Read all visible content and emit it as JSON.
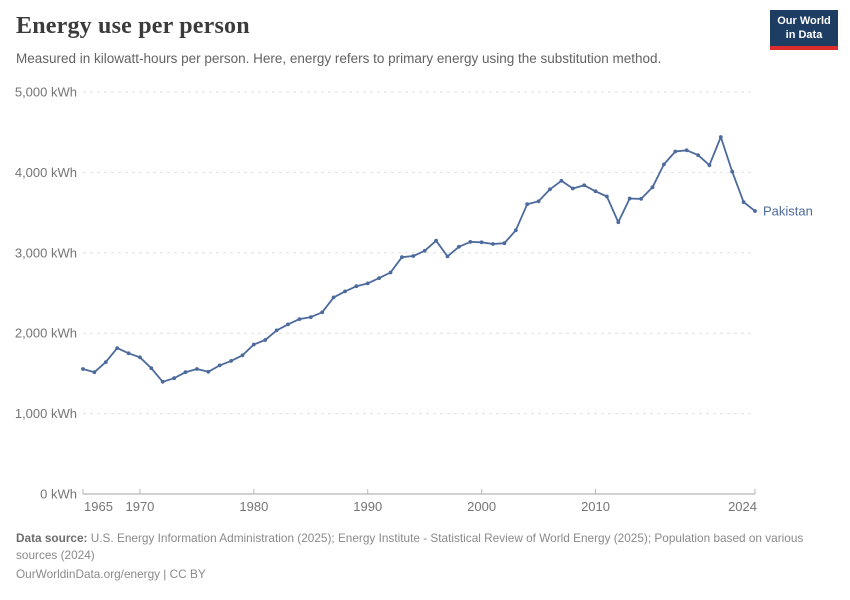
{
  "header": {
    "title": "Energy use per person",
    "subtitle": "Measured in kilowatt-hours per person. Here, energy refers to primary energy using the substitution method.",
    "logo": {
      "line1": "Our World",
      "line2": "in Data"
    }
  },
  "chart_data": {
    "type": "line",
    "title": "Energy use per person",
    "unit": "kWh",
    "entity": "Pakistan",
    "ylim": [
      0,
      5000
    ],
    "yticks": [
      0,
      1000,
      2000,
      3000,
      4000,
      5000
    ],
    "ytick_labels": [
      "0 kWh",
      "1,000 kWh",
      "2,000 kWh",
      "3,000 kWh",
      "4,000 kWh",
      "5,000 kWh"
    ],
    "xticks": [
      1965,
      1970,
      1980,
      1990,
      2000,
      2010,
      2024
    ],
    "grid": "horizontal-dashed",
    "legend_position": "end-of-line-label",
    "x": [
      1965,
      1966,
      1967,
      1968,
      1969,
      1970,
      1971,
      1972,
      1973,
      1974,
      1975,
      1976,
      1977,
      1978,
      1979,
      1980,
      1981,
      1982,
      1983,
      1984,
      1985,
      1986,
      1987,
      1988,
      1989,
      1990,
      1991,
      1992,
      1993,
      1994,
      1995,
      1996,
      1997,
      1998,
      1999,
      2000,
      2001,
      2002,
      2003,
      2004,
      2005,
      2006,
      2007,
      2008,
      2009,
      2010,
      2011,
      2012,
      2013,
      2014,
      2015,
      2016,
      2017,
      2018,
      2019,
      2020,
      2021,
      2022,
      2023,
      2024
    ],
    "series": [
      {
        "name": "Pakistan",
        "color": "#4C6A9C",
        "values": [
          1555,
          1515,
          1640,
          1815,
          1750,
          1700,
          1565,
          1395,
          1440,
          1515,
          1555,
          1520,
          1600,
          1655,
          1725,
          1860,
          1915,
          2035,
          2110,
          2175,
          2200,
          2260,
          2445,
          2520,
          2585,
          2620,
          2685,
          2755,
          2945,
          2960,
          3025,
          3150,
          2955,
          3075,
          3135,
          3130,
          3110,
          3120,
          3280,
          3605,
          3640,
          3790,
          3895,
          3800,
          3840,
          3765,
          3700,
          3380,
          3675,
          3670,
          3815,
          4100,
          4260,
          4275,
          4215,
          4090,
          4440,
          4010,
          3630,
          3520
        ]
      }
    ]
  },
  "footer": {
    "source_label": "Data source:",
    "source_text": "U.S. Energy Information Administration (2025); Energy Institute - Statistical Review of World Energy (2025); Population based on various sources (2024)",
    "license_text": "OurWorldinData.org/energy | CC BY"
  },
  "colors": {
    "line": "#4C6A9C",
    "entity_label": "#4C6A9C",
    "logo_bg": "#1d3d63",
    "logo_accent": "#dc2c2c",
    "axis_text": "#757575",
    "gridline": "#e0e0e0",
    "axis_line": "#a3a3a3"
  }
}
